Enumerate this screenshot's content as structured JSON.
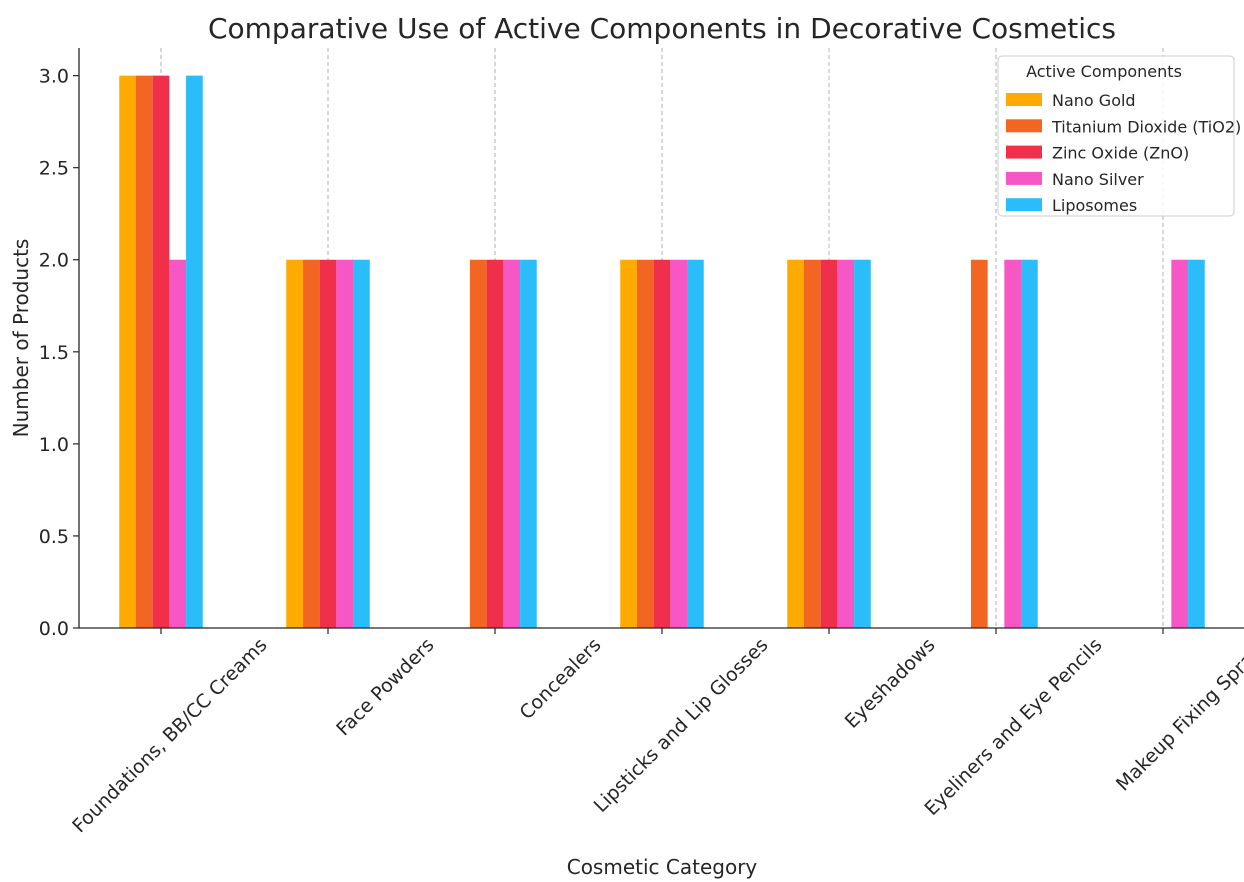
{
  "chart_data": {
    "type": "bar",
    "title": "Comparative Use of Active Components in Decorative Cosmetics",
    "xlabel": "Cosmetic Category",
    "ylabel": "Number of Products",
    "ylim": [
      0,
      3.15
    ],
    "yticks": [
      "0.0",
      "0.5",
      "1.0",
      "1.5",
      "2.0",
      "2.5",
      "3.0"
    ],
    "categories": [
      "Foundations, BB/CC Creams",
      "Face Powders",
      "Concealers",
      "Lipsticks and Lip Glosses",
      "Eyeshadows",
      "Eyeliners and Eye Pencils",
      "Makeup Fixing Sprays"
    ],
    "series": [
      {
        "name": "Nano Gold",
        "color": "#FFAA00",
        "values": [
          3,
          2,
          0,
          2,
          2,
          0,
          0
        ]
      },
      {
        "name": "Titanium Dioxide (TiO2)",
        "color": "#F26522",
        "values": [
          3,
          2,
          2,
          2,
          2,
          2,
          0
        ]
      },
      {
        "name": "Zinc Oxide (ZnO)",
        "color": "#F0304A",
        "values": [
          3,
          2,
          2,
          2,
          2,
          0,
          0
        ]
      },
      {
        "name": "Nano Silver",
        "color": "#F756C5",
        "values": [
          2,
          2,
          2,
          2,
          2,
          2,
          2
        ]
      },
      {
        "name": "Liposomes",
        "color": "#2BBDF9",
        "values": [
          3,
          2,
          2,
          2,
          2,
          2,
          2
        ]
      }
    ],
    "legend": {
      "title": "Active Components",
      "position": "top-right"
    },
    "grid": {
      "x": true,
      "y": false
    }
  }
}
